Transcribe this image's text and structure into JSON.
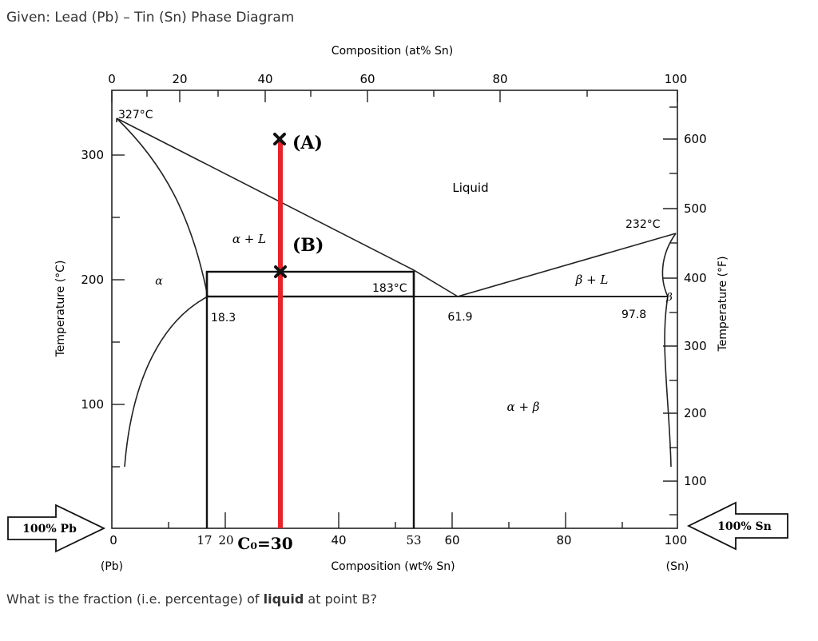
{
  "header": {
    "title": "Given: Lead (Pb) – Tin (Sn) Phase Diagram"
  },
  "question": {
    "prefix": "What is the fraction (i.e. percentage) of ",
    "bold": "liquid",
    "suffix": " at point B?"
  },
  "axes": {
    "top_label": "Composition (at% Sn)",
    "top_ticks": [
      "0",
      "20",
      "40",
      "60",
      "80",
      "100"
    ],
    "bottom_label": "Composition (wt% Sn)",
    "bottom_ticks": [
      "0",
      "40",
      "60",
      "80",
      "100"
    ],
    "left_label": "Temperature (°C)",
    "left_ticks": [
      "100",
      "200",
      "300"
    ],
    "right_label": "Temperature (°F)",
    "right_ticks": [
      "100",
      "200",
      "300",
      "400",
      "500",
      "600"
    ],
    "pb_label": "(Pb)",
    "sn_label": "(Sn)"
  },
  "phases": {
    "liquid": "Liquid",
    "alpha": "α",
    "alpha_L": "α + L",
    "beta_L": "β + L",
    "beta": "β",
    "alpha_beta": "α + β"
  },
  "annotations": {
    "pb_melt": "327°C",
    "sn_melt": "232°C",
    "eutectic_temp": "183°C",
    "alpha_limit": "18.3",
    "eutectic_comp": "61.9",
    "beta_limit": "97.8",
    "point_a": "(A)",
    "point_b": "(B)",
    "tie_left": "17",
    "tie_20": "20",
    "c0": "C₀=30",
    "tie_right": "53"
  },
  "arrows": {
    "left": "100% Pb",
    "right": "100% Sn"
  },
  "colors": {
    "vertical_line": "#e8232a",
    "ink": "#222222"
  }
}
